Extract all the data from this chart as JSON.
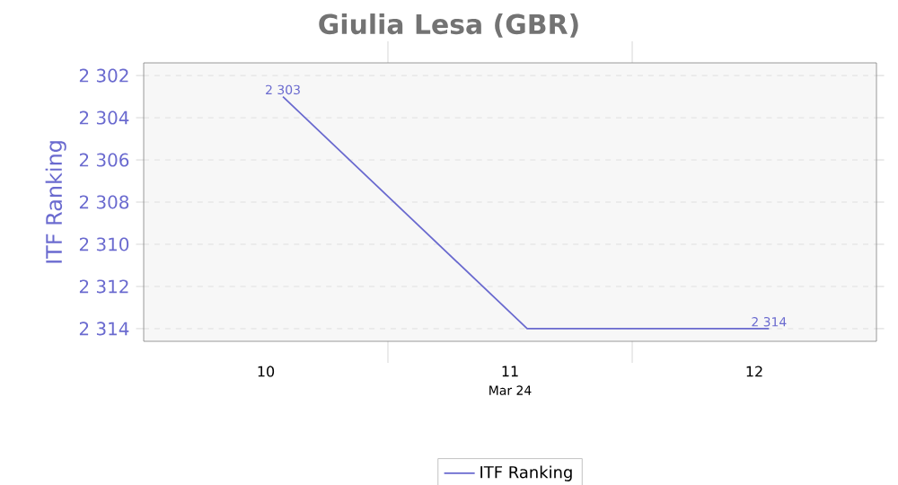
{
  "chart_data": {
    "type": "line",
    "title": "Giulia Lesa (GBR)",
    "xlabel": "Mar 24",
    "ylabel": "ITF Ranking",
    "x": [
      10.07,
      11.07,
      12.06
    ],
    "series": [
      {
        "name": "ITF Ranking",
        "color": "#6a6acf",
        "values": [
          2303,
          2314,
          2314
        ],
        "value_labels": [
          "2 303",
          null,
          "2 314"
        ]
      }
    ],
    "xlim": [
      9.5,
      12.5
    ],
    "xticks": [
      {
        "value": 10,
        "label": "10"
      },
      {
        "value": 10.5,
        "label": null
      },
      {
        "value": 11,
        "label": "11"
      },
      {
        "value": 11.5,
        "label": null
      },
      {
        "value": 12,
        "label": "12"
      }
    ],
    "ylim": [
      2314.6,
      2301.4
    ],
    "yticks": [
      {
        "value": 2302,
        "label": "2 302"
      },
      {
        "value": 2304,
        "label": "2 304"
      },
      {
        "value": 2306,
        "label": "2 306"
      },
      {
        "value": 2308,
        "label": "2 308"
      },
      {
        "value": 2310,
        "label": "2 310"
      },
      {
        "value": 2312,
        "label": "2 312"
      },
      {
        "value": 2314,
        "label": "2 314"
      }
    ],
    "grid": "y",
    "legend": "bottom",
    "marker": "none",
    "line_style": "solid"
  }
}
